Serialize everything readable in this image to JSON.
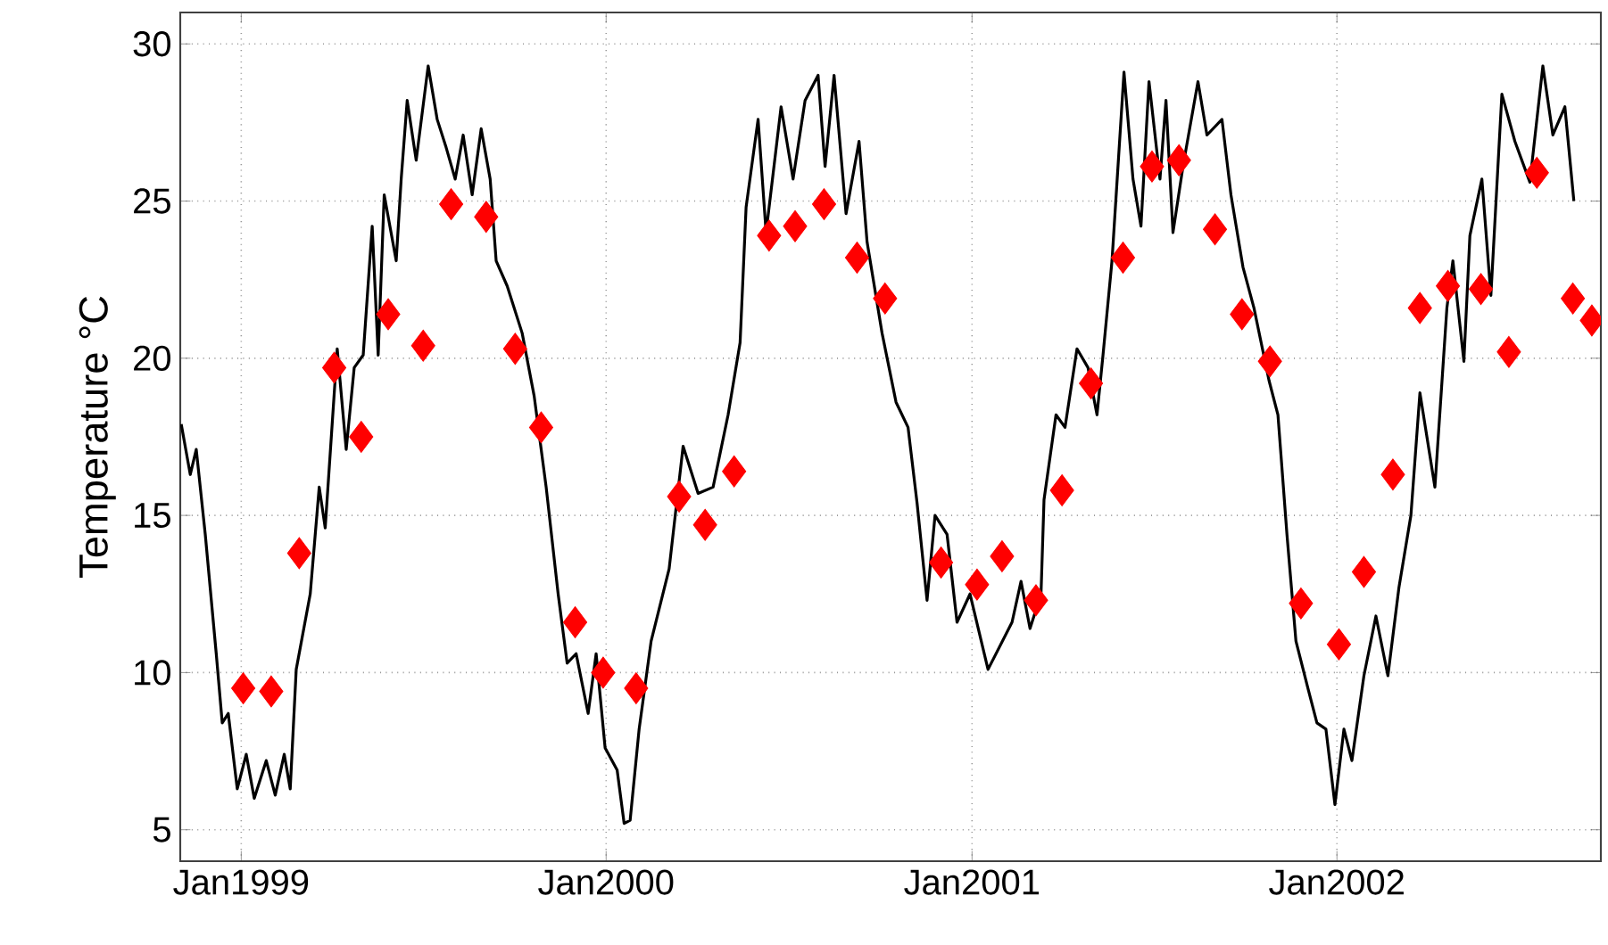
{
  "chart_data": {
    "type": "line",
    "ylabel": "Temperature °C",
    "xlim": [
      "1998-11-01",
      "2002-09-22"
    ],
    "xticks": [
      {
        "value": "1999-01-01",
        "label": "Jan1999"
      },
      {
        "value": "2000-01-01",
        "label": "Jan2000"
      },
      {
        "value": "2001-01-01",
        "label": "Jan2001"
      },
      {
        "value": "2002-01-01",
        "label": "Jan2002"
      }
    ],
    "ylim": [
      4,
      31
    ],
    "yticks": [
      5,
      10,
      15,
      20,
      25,
      30
    ],
    "grid": true,
    "series": [
      {
        "color": "#000000",
        "marker": "none",
        "line_style": "solid",
        "x": [
          "1998-11-02",
          "1998-11-11",
          "1998-11-17",
          "1998-11-26",
          "1998-12-07",
          "1998-12-13",
          "1998-12-19",
          "1998-12-28",
          "1999-01-06",
          "1999-01-14",
          "1999-01-26",
          "1999-02-04",
          "1999-02-13",
          "1999-02-19",
          "1999-02-25",
          "1999-03-11",
          "1999-03-20",
          "1999-03-26",
          "1999-04-07",
          "1999-04-16",
          "1999-04-24",
          "1999-05-03",
          "1999-05-12",
          "1999-05-18",
          "1999-05-24",
          "1999-06-05",
          "1999-06-10",
          "1999-06-16",
          "1999-06-25",
          "1999-07-07",
          "1999-07-16",
          "1999-07-25",
          "1999-08-03",
          "1999-08-11",
          "1999-08-20",
          "1999-08-29",
          "1999-09-07",
          "1999-09-13",
          "1999-09-24",
          "1999-10-09",
          "1999-10-21",
          "1999-11-02",
          "1999-11-14",
          "1999-11-23",
          "1999-12-02",
          "1999-12-14",
          "1999-12-22",
          "1999-12-31",
          "2000-01-12",
          "2000-01-19",
          "2000-01-25",
          "2000-02-03",
          "2000-02-15",
          "2000-03-04",
          "2000-03-18",
          "2000-04-02",
          "2000-04-17",
          "2000-05-02",
          "2000-05-14",
          "2000-05-20",
          "2000-06-01",
          "2000-06-09",
          "2000-06-24",
          "2000-07-06",
          "2000-07-18",
          "2000-07-31",
          "2000-08-07",
          "2000-08-16",
          "2000-08-28",
          "2000-09-10",
          "2000-09-18",
          "2000-10-03",
          "2000-10-17",
          "2000-10-29",
          "2000-11-07",
          "2000-11-17",
          "2000-11-25",
          "2000-12-07",
          "2000-12-17",
          "2000-12-30",
          "2001-01-17",
          "2001-02-10",
          "2001-02-19",
          "2001-02-28",
          "2001-03-11",
          "2001-03-14",
          "2001-03-26",
          "2001-04-04",
          "2001-04-16",
          "2001-04-27",
          "2001-05-06",
          "2001-05-12",
          "2001-05-21",
          "2001-06-02",
          "2001-06-11",
          "2001-06-19",
          "2001-06-27",
          "2001-07-08",
          "2001-07-14",
          "2001-07-21",
          "2001-07-31",
          "2001-08-15",
          "2001-08-24",
          "2001-09-08",
          "2001-09-17",
          "2001-09-29",
          "2001-10-10",
          "2001-10-25",
          "2001-11-03",
          "2001-11-12",
          "2001-11-21",
          "2001-12-03",
          "2001-12-12",
          "2001-12-21",
          "2001-12-30",
          "2002-01-08",
          "2002-01-16",
          "2002-01-28",
          "2002-02-09",
          "2002-02-21",
          "2002-03-04",
          "2002-03-16",
          "2002-03-25",
          "2002-04-09",
          "2002-04-21",
          "2002-04-27",
          "2002-05-08",
          "2002-05-14",
          "2002-05-26",
          "2002-06-04",
          "2002-06-15",
          "2002-06-28",
          "2002-07-13",
          "2002-07-26",
          "2002-08-05",
          "2002-08-17",
          "2002-08-26"
        ],
        "values": [
          17.9,
          16.3,
          17.1,
          14.4,
          10.6,
          8.4,
          8.7,
          6.3,
          7.4,
          6.0,
          7.2,
          6.1,
          7.4,
          6.3,
          10.1,
          12.5,
          15.9,
          14.6,
          20.3,
          17.1,
          19.7,
          20.1,
          24.2,
          20.1,
          25.2,
          23.1,
          25.7,
          28.2,
          26.3,
          29.3,
          27.6,
          26.7,
          25.7,
          27.1,
          25.2,
          27.3,
          25.7,
          23.1,
          22.3,
          20.8,
          18.8,
          15.9,
          12.5,
          10.3,
          10.6,
          8.7,
          10.6,
          7.6,
          6.9,
          5.2,
          5.3,
          8.2,
          11.0,
          13.3,
          17.2,
          15.7,
          15.9,
          18.2,
          20.5,
          24.8,
          27.6,
          24.0,
          28.0,
          25.7,
          28.2,
          29.0,
          26.1,
          29.0,
          24.6,
          26.9,
          23.7,
          20.8,
          18.6,
          17.8,
          15.4,
          12.3,
          15.0,
          14.4,
          11.6,
          12.5,
          10.1,
          11.6,
          12.9,
          11.4,
          12.5,
          15.5,
          18.2,
          17.8,
          20.3,
          19.7,
          18.2,
          20.1,
          23.1,
          29.1,
          25.7,
          24.2,
          28.8,
          25.7,
          28.2,
          24.0,
          26.1,
          28.8,
          27.1,
          27.6,
          25.2,
          22.9,
          21.6,
          19.3,
          18.2,
          14.4,
          11.0,
          9.5,
          8.4,
          8.2,
          5.8,
          8.2,
          7.2,
          9.9,
          11.8,
          9.9,
          12.7,
          15.0,
          18.9,
          15.9,
          21.6,
          23.1,
          19.9,
          23.9,
          25.7,
          22.0,
          28.4,
          26.9,
          25.6,
          29.3,
          27.1,
          28.0,
          25.0
        ]
      },
      {
        "type": "scatter",
        "color": "#ff0000",
        "marker": "diamond",
        "x": [
          "1999-01-03",
          "1999-01-31",
          "1999-02-28",
          "1999-04-04",
          "1999-05-01",
          "1999-05-28",
          "1999-07-02",
          "1999-07-30",
          "1999-09-03",
          "1999-10-02",
          "1999-10-28",
          "1999-12-01",
          "1999-12-29",
          "2000-01-31",
          "2000-03-14",
          "2000-04-09",
          "2000-05-08",
          "2000-06-12",
          "2000-07-08",
          "2000-08-06",
          "2000-09-08",
          "2000-10-06",
          "2000-12-01",
          "2001-01-06",
          "2001-01-31",
          "2001-03-06",
          "2001-04-01",
          "2001-04-30",
          "2001-06-01",
          "2001-06-30",
          "2001-07-27",
          "2001-09-01",
          "2001-09-28",
          "2001-10-26",
          "2001-11-26",
          "2002-01-03",
          "2002-01-28",
          "2002-02-26",
          "2002-03-25",
          "2002-04-22",
          "2002-05-25",
          "2002-06-22",
          "2002-07-20",
          "2002-08-25",
          "2002-09-13"
        ],
        "values": [
          9.5,
          9.4,
          13.8,
          19.7,
          17.5,
          21.4,
          20.4,
          24.9,
          24.5,
          20.3,
          17.8,
          11.6,
          10.0,
          9.5,
          15.6,
          14.7,
          16.4,
          23.9,
          24.2,
          24.9,
          23.2,
          21.9,
          13.5,
          12.8,
          13.7,
          12.3,
          15.8,
          19.2,
          23.2,
          26.1,
          26.3,
          24.1,
          21.4,
          19.9,
          12.2,
          10.9,
          13.2,
          16.3,
          21.6,
          22.3,
          22.2,
          20.2,
          25.9,
          21.9,
          21.2
        ]
      }
    ]
  }
}
